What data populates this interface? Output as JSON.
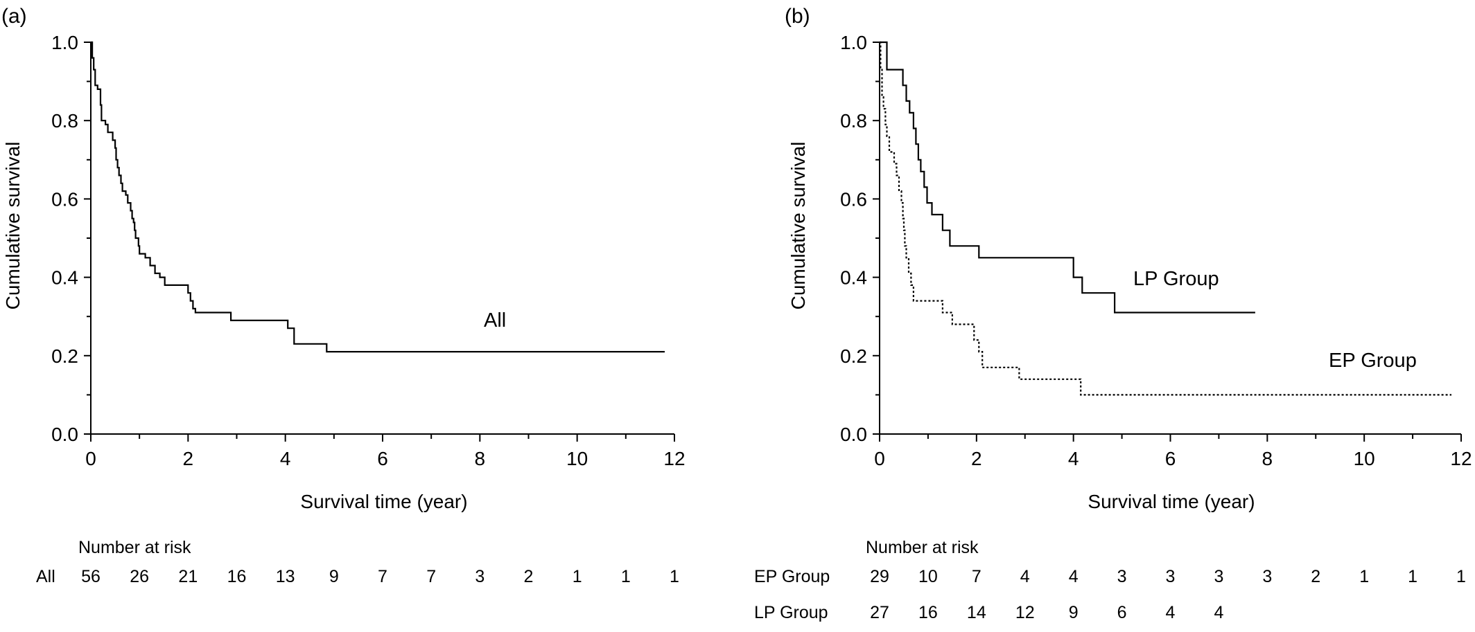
{
  "chart_data": [
    {
      "type": "line",
      "panel_label": "(a)",
      "xlabel": "Survival time (year)",
      "ylabel": "Cumulative survival",
      "xlim": [
        0,
        12
      ],
      "ylim": [
        0,
        1.0
      ],
      "x_ticks": [
        "0",
        "2",
        "4",
        "6",
        "8",
        "10",
        "12"
      ],
      "y_ticks": [
        "0.0",
        "0.2",
        "0.4",
        "0.6",
        "0.8",
        "1.0"
      ],
      "series": [
        {
          "name": "All",
          "style": "solid",
          "points": [
            [
              0,
              1.0
            ],
            [
              0.03,
              0.96
            ],
            [
              0.06,
              0.93
            ],
            [
              0.09,
              0.89
            ],
            [
              0.14,
              0.88
            ],
            [
              0.2,
              0.84
            ],
            [
              0.22,
              0.8
            ],
            [
              0.3,
              0.79
            ],
            [
              0.35,
              0.77
            ],
            [
              0.45,
              0.75
            ],
            [
              0.5,
              0.73
            ],
            [
              0.52,
              0.7
            ],
            [
              0.55,
              0.68
            ],
            [
              0.58,
              0.66
            ],
            [
              0.62,
              0.64
            ],
            [
              0.65,
              0.62
            ],
            [
              0.72,
              0.61
            ],
            [
              0.76,
              0.59
            ],
            [
              0.82,
              0.57
            ],
            [
              0.85,
              0.55
            ],
            [
              0.88,
              0.54
            ],
            [
              0.9,
              0.52
            ],
            [
              0.92,
              0.5
            ],
            [
              0.98,
              0.48
            ],
            [
              1.0,
              0.46
            ],
            [
              1.12,
              0.45
            ],
            [
              1.22,
              0.43
            ],
            [
              1.32,
              0.41
            ],
            [
              1.42,
              0.4
            ],
            [
              1.52,
              0.38
            ],
            [
              2.0,
              0.36
            ],
            [
              2.05,
              0.34
            ],
            [
              2.1,
              0.32
            ],
            [
              2.15,
              0.31
            ],
            [
              2.88,
              0.29
            ],
            [
              4.05,
              0.27
            ],
            [
              4.18,
              0.23
            ],
            [
              4.85,
              0.21
            ],
            [
              11.8,
              0.21
            ]
          ]
        }
      ],
      "annotations": [
        "All"
      ],
      "risk_table": {
        "title": "Number at risk",
        "rows": [
          {
            "label": "All",
            "values": [
              "56",
              "26",
              "21",
              "16",
              "13",
              "9",
              "7",
              "7",
              "3",
              "2",
              "1",
              "1",
              "1"
            ]
          }
        ]
      }
    },
    {
      "type": "line",
      "panel_label": "(b)",
      "xlabel": "Survival time (year)",
      "ylabel": "Cumulative survival",
      "xlim": [
        0,
        12
      ],
      "ylim": [
        0,
        1.0
      ],
      "x_ticks": [
        "0",
        "2",
        "4",
        "6",
        "8",
        "10",
        "12"
      ],
      "y_ticks": [
        "0.0",
        "0.2",
        "0.4",
        "0.6",
        "0.8",
        "1.0"
      ],
      "series": [
        {
          "name": "LP Group",
          "style": "solid",
          "points": [
            [
              0,
              1.0
            ],
            [
              0.15,
              0.93
            ],
            [
              0.48,
              0.89
            ],
            [
              0.55,
              0.85
            ],
            [
              0.62,
              0.82
            ],
            [
              0.7,
              0.78
            ],
            [
              0.75,
              0.74
            ],
            [
              0.8,
              0.7
            ],
            [
              0.85,
              0.67
            ],
            [
              0.92,
              0.63
            ],
            [
              0.98,
              0.59
            ],
            [
              1.08,
              0.56
            ],
            [
              1.3,
              0.52
            ],
            [
              1.45,
              0.48
            ],
            [
              2.05,
              0.45
            ],
            [
              4.0,
              0.4
            ],
            [
              4.18,
              0.36
            ],
            [
              4.85,
              0.31
            ],
            [
              7.75,
              0.31
            ]
          ]
        },
        {
          "name": "EP Group",
          "style": "dotted",
          "points": [
            [
              0,
              1.0
            ],
            [
              0.02,
              0.93
            ],
            [
              0.05,
              0.86
            ],
            [
              0.08,
              0.83
            ],
            [
              0.12,
              0.79
            ],
            [
              0.15,
              0.76
            ],
            [
              0.2,
              0.72
            ],
            [
              0.3,
              0.69
            ],
            [
              0.35,
              0.66
            ],
            [
              0.4,
              0.62
            ],
            [
              0.45,
              0.59
            ],
            [
              0.48,
              0.55
            ],
            [
              0.5,
              0.52
            ],
            [
              0.52,
              0.48
            ],
            [
              0.55,
              0.45
            ],
            [
              0.6,
              0.41
            ],
            [
              0.65,
              0.38
            ],
            [
              0.7,
              0.34
            ],
            [
              1.3,
              0.31
            ],
            [
              1.5,
              0.28
            ],
            [
              1.95,
              0.24
            ],
            [
              2.05,
              0.21
            ],
            [
              2.12,
              0.17
            ],
            [
              2.88,
              0.14
            ],
            [
              4.15,
              0.1
            ],
            [
              11.8,
              0.1
            ]
          ]
        }
      ],
      "annotations": [
        "LP Group",
        "EP Group"
      ],
      "risk_table": {
        "title": "Number at risk",
        "rows": [
          {
            "label": "EP Group",
            "values": [
              "29",
              "10",
              "7",
              "4",
              "4",
              "3",
              "3",
              "3",
              "3",
              "2",
              "1",
              "1",
              "1"
            ]
          },
          {
            "label": "LP Group",
            "values": [
              "27",
              "16",
              "14",
              "12",
              "9",
              "6",
              "4",
              "4"
            ]
          }
        ]
      }
    }
  ]
}
